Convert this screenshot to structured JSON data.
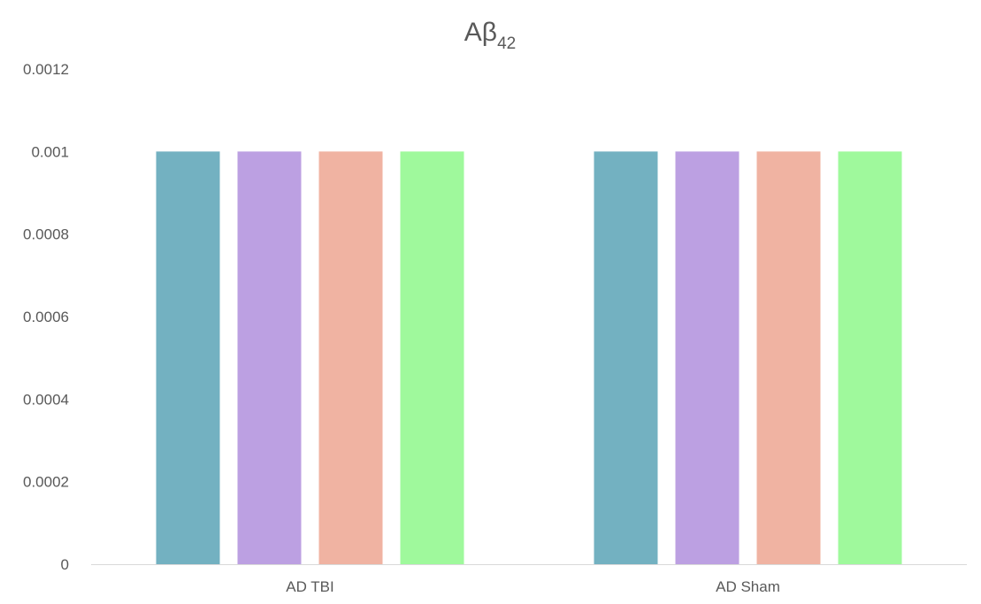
{
  "chart_data": {
    "type": "bar",
    "title": "Aβ",
    "title_subscript": "42",
    "xlabel": "",
    "ylabel": "",
    "categories": [
      "AD TBI",
      "AD Sham"
    ],
    "series": [
      {
        "values": [
          0.001,
          0.001
        ],
        "color": "#73B1C1"
      },
      {
        "values": [
          0.001,
          0.001
        ],
        "color": "#BCA0E2"
      },
      {
        "values": [
          0.001,
          0.001
        ],
        "color": "#F0B3A2"
      },
      {
        "values": [
          0.001,
          0.001
        ],
        "color": "#9FF99C"
      }
    ],
    "ylim": [
      0,
      0.0012
    ],
    "yticks": [
      0,
      0.0002,
      0.0004,
      0.0006,
      0.0008,
      0.001,
      0.0012
    ],
    "ytick_labels": [
      "0",
      "0.0002",
      "0.0004",
      "0.0006",
      "0.0008",
      "0.001",
      "0.0012"
    ],
    "grid": false,
    "legend": "none",
    "axis_color": "#D9D9D9",
    "text_color": "#595959"
  }
}
